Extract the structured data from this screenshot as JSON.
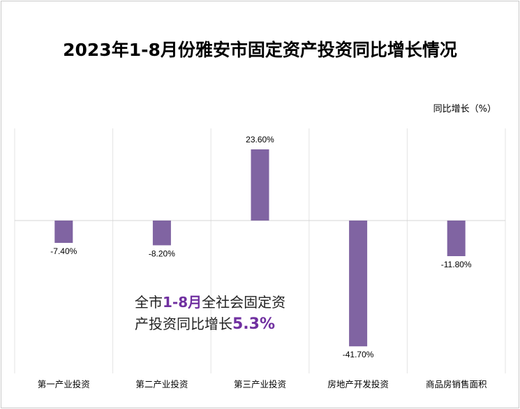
{
  "chart_data": {
    "type": "bar",
    "title": "2023年1-8月份雅安市固定资产投资同比增长情况",
    "ylabel": "同比增长（%）",
    "categories": [
      "第一产业投资",
      "第二产业投资",
      "第三产业投资",
      "房地产开发投资",
      "商品房销售面积"
    ],
    "values": [
      -7.4,
      -8.2,
      23.6,
      -41.7,
      -11.8
    ],
    "data_labels": [
      "-7.40%",
      "-8.20%",
      "23.60%",
      "-41.70%",
      "-11.80%"
    ],
    "ylim": [
      -41.7,
      23.6
    ],
    "grid": false,
    "legend": "none",
    "bar_color": "#8064a2"
  },
  "annotation": {
    "prefix": "全市",
    "period": "1-8月",
    "middle": "全社会固定资",
    "line2_prefix": "产投资同比增长",
    "value": "5.3%"
  }
}
